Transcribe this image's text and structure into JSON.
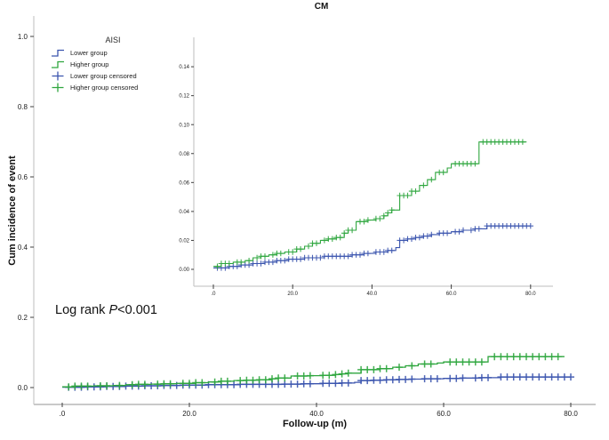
{
  "title": "CM",
  "axes": {
    "y_label": "Cum incidence of event",
    "x_label": "Follow-up (m)"
  },
  "annotation": {
    "prefix": "Log rank ",
    "p": "P",
    "suffix": "<0.001"
  },
  "colors": {
    "lower": "#3b54ae",
    "higher": "#2fa63e",
    "axis": "#c9c9c9",
    "tick_mark": "#3f3f3f",
    "text": "#1c1c1c"
  },
  "legend": {
    "title": "AISI",
    "items": [
      {
        "label": "Lower group",
        "color_key": "lower",
        "symbol": "step"
      },
      {
        "label": "Higher group",
        "color_key": "higher",
        "symbol": "step"
      },
      {
        "label": "Lower group censored",
        "color_key": "lower",
        "symbol": "plus"
      },
      {
        "label": "Higher group censored",
        "color_key": "higher",
        "symbol": "plus"
      }
    ]
  },
  "chart_data": {
    "type": "line",
    "subtype": "cumulative-incidence-step",
    "title": "CM",
    "xlabel": "Follow-up (m)",
    "ylabel": "Cum incidence of event",
    "grid": false,
    "legend_position": "upper-left",
    "series": [
      {
        "name": "Lower group",
        "color_key": "lower",
        "steps": [
          [
            0,
            0.001
          ],
          [
            4,
            0.002
          ],
          [
            7,
            0.003
          ],
          [
            10,
            0.004
          ],
          [
            13,
            0.005
          ],
          [
            16,
            0.006
          ],
          [
            19,
            0.007
          ],
          [
            23,
            0.008
          ],
          [
            28,
            0.009
          ],
          [
            35,
            0.01
          ],
          [
            38,
            0.011
          ],
          [
            41,
            0.012
          ],
          [
            44,
            0.013
          ],
          [
            46,
            0.015
          ],
          [
            47,
            0.02
          ],
          [
            49,
            0.021
          ],
          [
            51,
            0.022
          ],
          [
            53,
            0.023
          ],
          [
            55,
            0.024
          ],
          [
            57,
            0.025
          ],
          [
            60,
            0.026
          ],
          [
            63,
            0.027
          ],
          [
            66,
            0.028
          ],
          [
            69,
            0.03
          ],
          [
            80,
            0.03
          ]
        ],
        "censor_x": [
          1,
          2,
          3,
          4,
          5,
          6,
          7,
          8,
          9,
          10,
          11,
          12,
          13,
          14,
          15,
          16,
          17,
          18,
          19,
          20,
          21,
          22,
          23,
          24,
          25,
          26,
          27,
          28,
          29,
          30,
          31,
          32,
          33,
          34,
          35,
          36,
          37,
          38,
          39,
          41,
          42,
          43,
          44,
          45,
          47,
          48,
          49,
          50,
          51,
          52,
          53,
          54,
          55,
          57,
          58,
          59,
          61,
          62,
          63,
          65,
          66,
          67,
          69,
          70,
          71,
          72,
          73,
          74,
          75,
          76,
          77,
          78,
          79,
          80
        ]
      },
      {
        "name": "Higher group",
        "color_key": "higher",
        "steps": [
          [
            0,
            0.002
          ],
          [
            2,
            0.004
          ],
          [
            5,
            0.005
          ],
          [
            8,
            0.006
          ],
          [
            10,
            0.008
          ],
          [
            12,
            0.009
          ],
          [
            14,
            0.01
          ],
          [
            16,
            0.011
          ],
          [
            18,
            0.012
          ],
          [
            21,
            0.014
          ],
          [
            23,
            0.016
          ],
          [
            25,
            0.018
          ],
          [
            27,
            0.02
          ],
          [
            29,
            0.021
          ],
          [
            31,
            0.022
          ],
          [
            33,
            0.025
          ],
          [
            34,
            0.027
          ],
          [
            36,
            0.033
          ],
          [
            39,
            0.034
          ],
          [
            41,
            0.035
          ],
          [
            43,
            0.037
          ],
          [
            44,
            0.039
          ],
          [
            45,
            0.041
          ],
          [
            47,
            0.051
          ],
          [
            50,
            0.054
          ],
          [
            52,
            0.058
          ],
          [
            54,
            0.062
          ],
          [
            56,
            0.067
          ],
          [
            59,
            0.07
          ],
          [
            60,
            0.073
          ],
          [
            67,
            0.088
          ],
          [
            79,
            0.088
          ]
        ],
        "censor_x": [
          1,
          2,
          3,
          4,
          6,
          7,
          9,
          11,
          12,
          13,
          15,
          16,
          17,
          19,
          20,
          21,
          22,
          24,
          25,
          26,
          28,
          29,
          30,
          31,
          32,
          33,
          34,
          35,
          37,
          38,
          39,
          41,
          42,
          43,
          44,
          45,
          47,
          48,
          49,
          50,
          51,
          53,
          55,
          57,
          58,
          61,
          62,
          63,
          64,
          65,
          66,
          68,
          69,
          70,
          71,
          72,
          73,
          74,
          75,
          76,
          77,
          78
        ]
      }
    ],
    "views": [
      {
        "id": "main",
        "xlim": [
          0,
          88
        ],
        "ylim": [
          0,
          1.05
        ],
        "x_ticks": {
          "labels": [
            ".0",
            "20.0",
            "40.0",
            "60.0",
            "80.0"
          ],
          "values": [
            0,
            20,
            40,
            60,
            80
          ]
        },
        "y_ticks": {
          "labels": [
            "1.0",
            "0.8",
            "0.6",
            "0.4",
            "0.2",
            "0.0"
          ],
          "values": [
            1.0,
            0.8,
            0.6,
            0.4,
            0.2,
            0.0
          ]
        }
      },
      {
        "id": "inset",
        "xlim": [
          0,
          86
        ],
        "ylim": [
          0,
          0.16
        ],
        "x_ticks": {
          "labels": [
            ".0",
            "20.0",
            "40.0",
            "60.0",
            "80.0"
          ],
          "values": [
            0,
            20,
            40,
            60,
            80
          ]
        },
        "y_ticks": {
          "labels": [
            "0.14",
            "0.12",
            "0.10",
            "0.08",
            "0.06",
            "0.04",
            "0.02",
            "0.00"
          ],
          "values": [
            0.14,
            0.12,
            0.1,
            0.08,
            0.06,
            0.04,
            0.02,
            0.0
          ]
        }
      }
    ]
  }
}
